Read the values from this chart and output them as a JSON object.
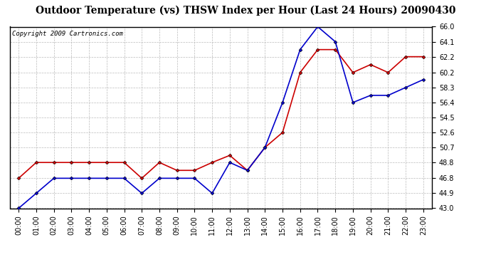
{
  "title": "Outdoor Temperature (vs) THSW Index per Hour (Last 24 Hours) 20090430",
  "copyright": "Copyright 2009 Cartronics.com",
  "hours": [
    "00:00",
    "01:00",
    "02:00",
    "03:00",
    "04:00",
    "05:00",
    "06:00",
    "07:00",
    "08:00",
    "09:00",
    "10:00",
    "11:00",
    "12:00",
    "13:00",
    "14:00",
    "15:00",
    "16:00",
    "17:00",
    "18:00",
    "19:00",
    "20:00",
    "21:00",
    "22:00",
    "23:00"
  ],
  "outdoor_temp": [
    43.0,
    44.9,
    46.8,
    46.8,
    46.8,
    46.8,
    46.8,
    44.9,
    46.8,
    46.8,
    46.8,
    44.9,
    48.8,
    47.8,
    50.7,
    56.4,
    63.1,
    66.0,
    64.1,
    56.4,
    57.3,
    57.3,
    58.3,
    59.3
  ],
  "thsw_index": [
    46.8,
    48.8,
    48.8,
    48.8,
    48.8,
    48.8,
    48.8,
    46.8,
    48.8,
    47.8,
    47.8,
    48.8,
    49.7,
    47.8,
    50.7,
    52.6,
    60.2,
    63.1,
    63.1,
    60.2,
    61.2,
    60.2,
    62.2,
    62.2
  ],
  "temp_color": "#0000cc",
  "thsw_color": "#cc0000",
  "bg_color": "#ffffff",
  "plot_bg_color": "#ffffff",
  "grid_color": "#bbbbbb",
  "ylim": [
    43.0,
    66.0
  ],
  "yticks": [
    43.0,
    44.9,
    46.8,
    48.8,
    50.7,
    52.6,
    54.5,
    56.4,
    58.3,
    60.2,
    62.2,
    64.1,
    66.0
  ],
  "title_fontsize": 10,
  "copyright_fontsize": 6.5,
  "tick_fontsize": 7,
  "marker": "D",
  "marker_size": 2.5,
  "line_width": 1.2
}
